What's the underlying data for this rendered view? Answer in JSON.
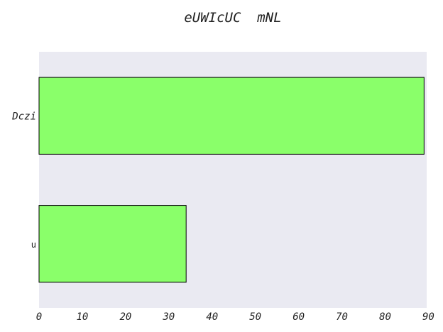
{
  "chart_data": {
    "type": "bar",
    "orientation": "horizontal",
    "title": "eUWIcUC  mNL",
    "xlabel": "",
    "ylabel": "",
    "categories": [
      "Dczi",
      "u"
    ],
    "values": [
      89,
      34
    ],
    "xlim": [
      0,
      89.6
    ],
    "xticks": [
      0,
      10,
      20,
      30,
      40,
      50,
      60,
      70,
      80,
      90
    ],
    "grid": false,
    "legend": "none",
    "colors": {
      "plot_background": "#eaeaf2",
      "bar_fill": "#8aff6a",
      "bar_stroke": "#000000"
    }
  }
}
